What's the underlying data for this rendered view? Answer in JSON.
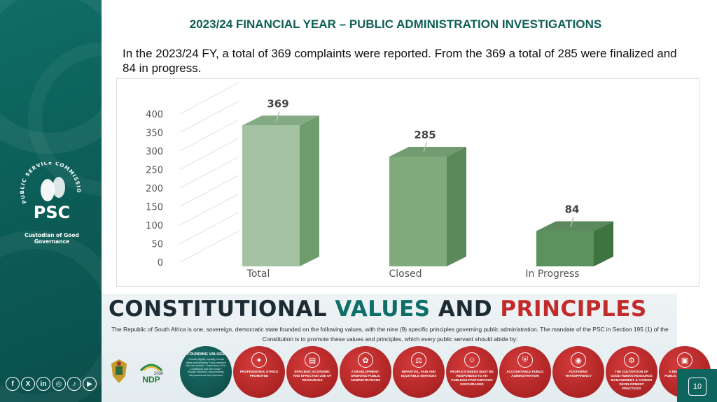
{
  "slide": {
    "title": "2023/24 FINANCIAL YEAR – PUBLIC ADMINISTRATION INVESTIGATIONS",
    "intro": "In the 2023/24 FY, a total of 369 complaints were reported. From the 369 a total of 285 were finalized and 84 in progress.",
    "page_number": "10"
  },
  "logo": {
    "arc_text": "PUBLIC SERVICE COMMISSION",
    "letters": "PSC",
    "tagline": "Custodian of Good Governance"
  },
  "social": [
    {
      "name": "facebook-icon",
      "glyph": "f"
    },
    {
      "name": "x-icon",
      "glyph": "X"
    },
    {
      "name": "linkedin-icon",
      "glyph": "in"
    },
    {
      "name": "instagram-icon",
      "glyph": "◎"
    },
    {
      "name": "tiktok-icon",
      "glyph": "♪"
    },
    {
      "name": "youtube-icon",
      "glyph": "▶"
    }
  ],
  "chart_data": {
    "type": "bar",
    "categories": [
      "Total",
      "Closed",
      "In Progress"
    ],
    "values": [
      369,
      285,
      84
    ],
    "yticks": [
      0,
      50,
      100,
      150,
      200,
      250,
      300,
      350,
      400
    ],
    "ylim": [
      0,
      400
    ],
    "colors": [
      "#a3c2a1",
      "#7fab7d",
      "#5b925d"
    ],
    "side_colors": [
      "#6e9c6d",
      "#5a8a59",
      "#3f7441"
    ],
    "grid": true,
    "legend": false
  },
  "banner": {
    "title_words": [
      "CONSTITUTIONAL",
      "VALUES",
      "AND",
      "PRINCIPLES"
    ],
    "description": "The Republic of South Africa is one, sovereign, democratic state founded on the following values, with the nine (9) specific principles governing public administration. The mandate of the PSC in Section 195 (1) of the Constitution is to promote these values and principles, which every public servant should abide by:",
    "ndp_label": "NDP",
    "ndp_year": "2030",
    "founding": {
      "heading": "FOUNDING VALUES",
      "items": "* Human dignity, equality, human rights and freedoms * Non-racialism and non-sexism * Supremacy of the Constitution and rule of law * Regular elections, accountability, responsiveness and openness"
    },
    "principles": [
      {
        "label": "PROFESSIONAL ETHICS PROMOTED",
        "icon": "✦"
      },
      {
        "label": "EFFICIENT, ECONOMIC AND EFFECTIVE USE OF RESOURCES",
        "icon": "▤"
      },
      {
        "label": "A DEVELOPMENT-ORIENTED PUBLIC ADMINISTRATIONS",
        "icon": "✿"
      },
      {
        "label": "IMPARTIAL, FAIR AND EQUITABLE SERVICES",
        "icon": "⚖"
      },
      {
        "label": "PEOPLE'S NEEDS MUST BE RESPONDED TO AN PUBLICES PARTICIPATION ENCOURAGED",
        "icon": "☺"
      },
      {
        "label": "ACCOUNTABLE PUBLIC ADMINISTRATION",
        "icon": "⛨"
      },
      {
        "label": "FOSTERING TRANSPARENCY",
        "icon": "◉"
      },
      {
        "label": "THE CULTIVATION OF GOOD HUMAN RESOURCE MANAGEMENT & CAREER DEVELOPMENT PRACTICES",
        "icon": "⚙"
      },
      {
        "label": "A REPRESENTATIVE PUBLIC ADMINISTRATION",
        "icon": "▣"
      }
    ]
  }
}
